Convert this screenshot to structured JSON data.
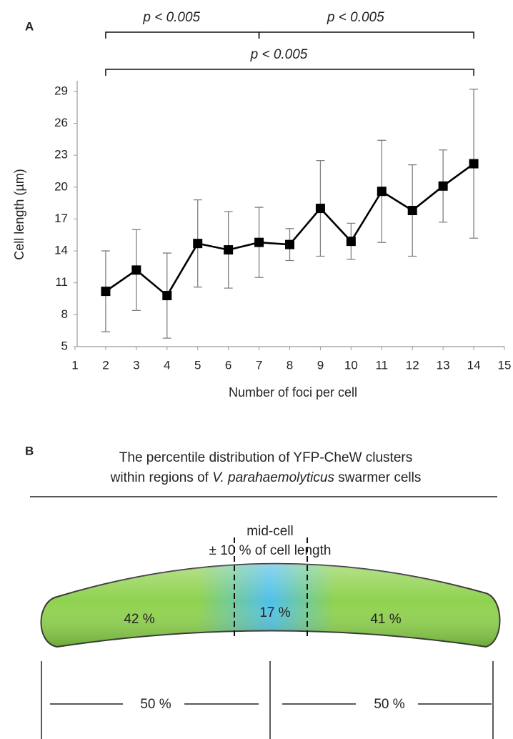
{
  "chart_data": {
    "type": "line",
    "panel_label": "A",
    "x_label": "Number of foci per cell",
    "y_label": "Cell length (µm)",
    "x": [
      2,
      3,
      4,
      5,
      6,
      7,
      8,
      9,
      10,
      11,
      12,
      13,
      14
    ],
    "values": [
      10.2,
      12.2,
      9.8,
      14.7,
      14.1,
      14.8,
      14.6,
      18.0,
      14.9,
      19.6,
      17.8,
      20.1,
      22.2
    ],
    "errors": [
      3.8,
      3.8,
      4.0,
      4.1,
      3.6,
      3.3,
      1.5,
      4.5,
      1.7,
      4.8,
      4.3,
      3.4,
      7.0
    ],
    "color": "#000000",
    "error_color": "#808080",
    "xlim": [
      1,
      15
    ],
    "xticks": [
      1,
      2,
      3,
      4,
      5,
      6,
      7,
      8,
      9,
      10,
      11,
      12,
      13,
      14,
      15
    ],
    "ylim": [
      5,
      30
    ],
    "yticks": [
      5,
      8,
      11,
      14,
      17,
      20,
      23,
      26,
      29
    ],
    "grid": false,
    "annotations": [
      {
        "text": "p < 0.005",
        "from": 2,
        "to": 7
      },
      {
        "text": "p < 0.005",
        "from": 7,
        "to": 14
      },
      {
        "text": "p < 0.005",
        "from": 2,
        "to": 14
      }
    ]
  },
  "panel_b": {
    "panel_label": "B",
    "title_line_1": "The percentile distribution of YFP-CheW clusters",
    "title_line_2": [
      "within regions of ",
      "V. parahaemolyticus",
      " swarmer cells"
    ],
    "mid_cell": [
      "mid-cell",
      "± 10 % of cell length"
    ],
    "regions": [
      "42 %",
      "17 %",
      "41 %"
    ],
    "halves": [
      "50 %",
      "50 %"
    ]
  }
}
